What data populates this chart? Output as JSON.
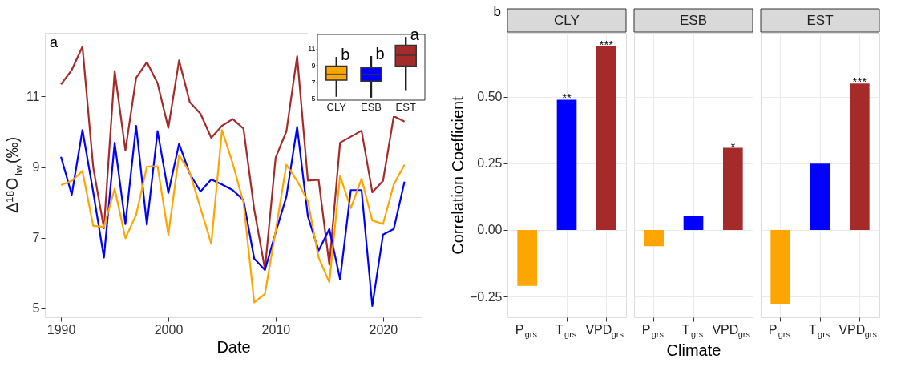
{
  "chart_data": [
    {
      "type": "line",
      "xlabel": "Date",
      "ylabel": "Δ¹⁸O$_{lw}$(‰)",
      "annotations": [
        "a"
      ],
      "x": [
        1990,
        1991,
        1992,
        1993,
        1994,
        1995,
        1996,
        1997,
        1998,
        1999,
        2000,
        2001,
        2002,
        2003,
        2004,
        2005,
        2006,
        2007,
        2008,
        2009,
        2010,
        2011,
        2012,
        2013,
        2014,
        2015,
        2016,
        2017,
        2018,
        2019,
        2020,
        2021,
        2022
      ],
      "series": [
        {
          "color": "#a52a2a",
          "values": [
            11.34,
            11.75,
            12.41,
            9.0,
            7.27,
            11.72,
            9.47,
            11.53,
            11.97,
            11.37,
            10.11,
            12.02,
            10.84,
            10.51,
            9.83,
            10.17,
            10.36,
            10.09,
            7.81,
            6.11,
            9.27,
            10.01,
            12.14,
            8.62,
            8.64,
            6.24,
            9.69,
            9.86,
            10.03,
            8.29,
            8.61,
            10.44,
            10.29
          ]
        },
        {
          "color": "#0000ff",
          "values": [
            9.29,
            8.22,
            10.05,
            8.3,
            6.44,
            9.69,
            7.39,
            10.17,
            7.37,
            10.02,
            8.27,
            9.66,
            8.81,
            8.31,
            8.65,
            8.51,
            8.35,
            8.07,
            6.41,
            6.09,
            7.15,
            8.17,
            10.14,
            7.61,
            6.64,
            7.25,
            5.82,
            8.35,
            8.35,
            5.07,
            7.09,
            7.25,
            8.59
          ]
        },
        {
          "color": "#ffa500",
          "values": [
            8.49,
            8.61,
            8.89,
            7.34,
            7.31,
            8.39,
            6.99,
            7.65,
            9.01,
            9.02,
            7.09,
            9.34,
            8.84,
            7.84,
            6.83,
            10.05,
            9.1,
            8.0,
            5.17,
            5.41,
            7.2,
            9.07,
            8.61,
            8.04,
            6.44,
            5.74,
            8.75,
            7.84,
            8.67,
            7.49,
            7.39,
            8.51,
            9.07
          ]
        }
      ],
      "xlim": [
        1988.5,
        2023.6
      ],
      "ylim": [
        4.75,
        12.8
      ],
      "xticks": [
        1990,
        2000,
        2010,
        2020
      ],
      "yticks": [
        5,
        7,
        9,
        11
      ],
      "grid": false
    },
    {
      "type": "box",
      "categories": [
        "CLY",
        "ESB",
        "EST"
      ],
      "colors": [
        "#ffa500",
        "#0000ff",
        "#a52a2a"
      ],
      "boxes": [
        {
          "low": 5.2,
          "q1": 7.2,
          "median": 7.9,
          "q3": 8.9,
          "high": 10.0
        },
        {
          "low": 5.1,
          "q1": 7.1,
          "median": 7.9,
          "q3": 8.7,
          "high": 10.1
        },
        {
          "low": 6.0,
          "q1": 8.9,
          "median": 10.2,
          "q3": 11.4,
          "high": 12.4
        }
      ],
      "annotations": [
        "b",
        "b",
        "a"
      ],
      "ylim": [
        4.8,
        12.7
      ],
      "yticks": [
        5,
        7,
        9,
        11
      ],
      "grid": false
    },
    {
      "type": "bar",
      "title": "CLY",
      "ylabel": "Correlation Coefficient",
      "annotations": [
        "b"
      ],
      "categories": [
        "P$_{grs}$",
        "T$_{grs}$",
        "VPD$_{grs}$"
      ],
      "values": [
        -0.21,
        0.489,
        0.69
      ],
      "colors": [
        "#ffa500",
        "#0000ff",
        "#a52a2a"
      ],
      "value_labels": [
        null,
        "**",
        "***"
      ],
      "ylim": [
        -0.328,
        0.74
      ],
      "yticks": [
        {
          "value": -0.25,
          "label": "−0.25"
        },
        {
          "value": 0,
          "label": "0.00"
        },
        {
          "value": 0.25,
          "label": "0.25"
        },
        {
          "value": 0.5,
          "label": "0.50"
        }
      ],
      "grid": true
    },
    {
      "type": "bar",
      "title": "ESB",
      "xlabel": "Climate",
      "categories": [
        "P$_{grs}$",
        "T$_{grs}$",
        "VPD$_{grs}$"
      ],
      "values": [
        -0.061,
        0.051,
        0.308
      ],
      "colors": [
        "#ffa500",
        "#0000ff",
        "#a52a2a"
      ],
      "value_labels": [
        null,
        null,
        "*"
      ],
      "ylim": [
        -0.328,
        0.74
      ],
      "yticks": [
        -0.25,
        0,
        0.25,
        0.5
      ],
      "grid": true,
      "tick_labels": "x"
    },
    {
      "type": "bar",
      "title": "EST",
      "categories": [
        "P$_{grs}$",
        "T$_{grs}$",
        "VPD$_{grs}$"
      ],
      "values": [
        -0.28,
        0.249,
        0.55
      ],
      "colors": [
        "#ffa500",
        "#0000ff",
        "#a52a2a"
      ],
      "value_labels": [
        null,
        null,
        "***"
      ],
      "ylim": [
        -0.328,
        0.74
      ],
      "yticks": [
        -0.25,
        0,
        0.25,
        0.5
      ],
      "grid": true,
      "tick_labels": "x"
    }
  ]
}
